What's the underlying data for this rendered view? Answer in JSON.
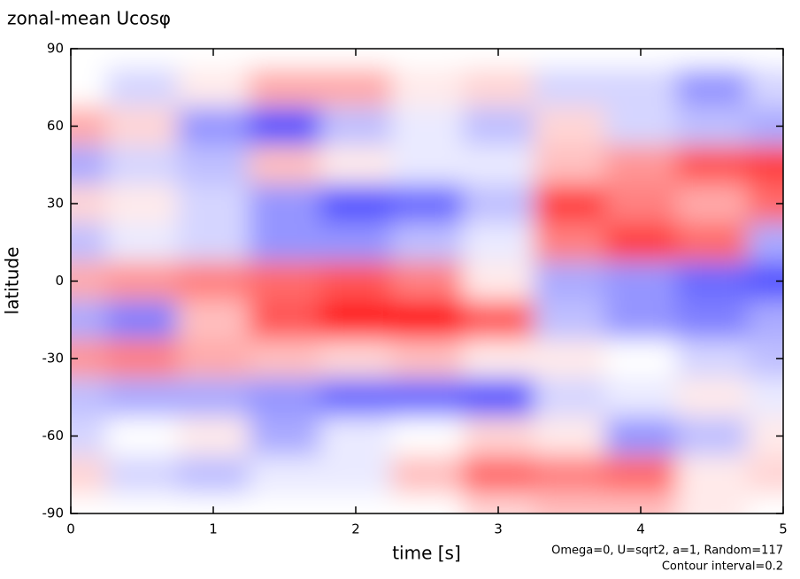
{
  "chart_data": {
    "type": "contour",
    "title": "zonal-mean Ucosφ",
    "xlabel": "time [s]",
    "ylabel": "latitude",
    "annotations": [
      "Omega=0, U=sqrt2, a=1, Random=117",
      "Contour interval=0.2"
    ],
    "x": [
      0,
      0.5,
      1,
      1.5,
      2,
      2.5,
      3,
      3.5,
      4,
      4.5,
      5
    ],
    "y": [
      90,
      75,
      60,
      45,
      30,
      15,
      0,
      -15,
      -30,
      -45,
      -60,
      -75,
      -90
    ],
    "z": [
      [
        0,
        0,
        0,
        0,
        0,
        0,
        0,
        0,
        0,
        0,
        0
      ],
      [
        0,
        -0.4,
        0.2,
        0.8,
        0.8,
        0.2,
        0.4,
        -0.4,
        -0.4,
        -1.0,
        -0.4
      ],
      [
        0.8,
        0.4,
        -1.0,
        -1.6,
        -0.6,
        -0.2,
        -0.6,
        0.4,
        -0.4,
        -0.6,
        -0.8
      ],
      [
        -0.8,
        -0.4,
        -0.6,
        0.6,
        0.2,
        -0.2,
        -0.2,
        0.6,
        1.0,
        1.6,
        1.8
      ],
      [
        0.4,
        0.2,
        -0.4,
        -1.0,
        -1.6,
        -1.4,
        -0.6,
        1.8,
        1.2,
        0.8,
        1.4
      ],
      [
        -0.6,
        -0.2,
        -0.4,
        -1.0,
        -1.0,
        -0.6,
        -0.2,
        1.2,
        1.8,
        1.4,
        -0.8
      ],
      [
        0.8,
        1.0,
        1.2,
        1.4,
        1.6,
        1.2,
        0.2,
        -0.8,
        -1.0,
        -1.4,
        -1.6
      ],
      [
        -0.8,
        -1.2,
        0.6,
        1.6,
        2.2,
        2.4,
        1.6,
        -0.6,
        -1.0,
        -1.2,
        -0.8
      ],
      [
        1.0,
        1.2,
        0.8,
        0.6,
        0.4,
        0.6,
        0.2,
        0.2,
        0,
        -0.4,
        -0.6
      ],
      [
        -0.6,
        -0.8,
        -0.8,
        -1.0,
        -1.4,
        -1.4,
        -1.6,
        -0.4,
        -0.2,
        0.2,
        -0.2
      ],
      [
        -0.4,
        0,
        0.2,
        -0.8,
        -0.2,
        0,
        0.4,
        0.2,
        -1.0,
        -0.6,
        0.2
      ],
      [
        0.4,
        -0.4,
        -0.6,
        -0.2,
        -0.2,
        0.6,
        1.4,
        1.2,
        1.4,
        0.2,
        0.4
      ],
      [
        0,
        0,
        0,
        0,
        0,
        0,
        0.4,
        0.6,
        0.6,
        0.2,
        0
      ]
    ],
    "positive_color": "#ff0000",
    "negative_color": "#0000ff",
    "xlim": [
      0,
      5
    ],
    "xticks": [
      0,
      1,
      2,
      3,
      4,
      5
    ],
    "ylim": [
      -90,
      90
    ],
    "yticks": [
      -90,
      -60,
      -30,
      0,
      30,
      60,
      90
    ]
  }
}
